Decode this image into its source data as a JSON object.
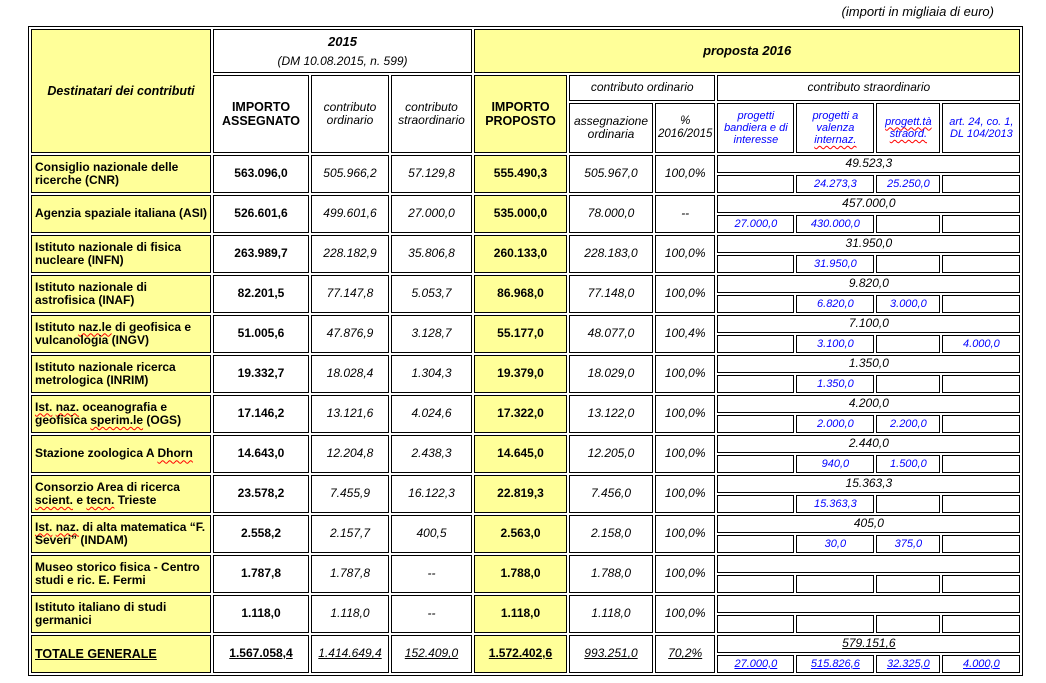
{
  "caption": "(importi in migliaia di euro)",
  "colors": {
    "highlight_yellow": "#FFFF99",
    "accent_blue": "#0000FF",
    "spellcheck_red": "#FF0000",
    "border": "#000000"
  },
  "header": {
    "destinatari": "Destinatari  dei contributi",
    "y2015": {
      "title": "2015",
      "subtitle": "(DM 10.08.2015,  n. 599)"
    },
    "proposta": "proposta 2016",
    "importo_assegnato": "IMPORTO ASSEGNATO",
    "contributo_ordinario_2015": "contributo ordinario",
    "contributo_straordinario_2015": "contributo straordinario",
    "importo_proposto": "IMPORTO PROPOSTO",
    "gruppo_ordinario": "contributo ordinario",
    "gruppo_straordinario": "contributo straordinario",
    "assegnazione_ordinaria": "assegnazione ordinaria",
    "pct_line1": "%",
    "pct_line2": "2016/2015",
    "str_cols": [
      [
        [
          "progetti bandiera e di interesse",
          0
        ]
      ],
      [
        [
          "progetti a valenza ",
          0
        ],
        [
          "internaz.",
          1
        ]
      ],
      [
        [
          "progett.tà",
          1
        ],
        [
          " ",
          0
        ],
        [
          "straord.",
          1
        ]
      ],
      [
        [
          "art. 24, co. 1, DL 104/2013",
          0
        ]
      ]
    ]
  },
  "rows": [
    {
      "name_segments": [
        [
          "Consiglio nazionale delle ricerche (CNR)",
          0
        ]
      ],
      "a15": "563.096,0",
      "o15": "505.966,2",
      "s15": "57.129,8",
      "prop": "555.490,3",
      "ass": "505.967,0",
      "pct": "100,0%",
      "stot": "49.523,3",
      "sc": [
        "",
        "24.273,3",
        "25.250,0",
        ""
      ]
    },
    {
      "name_segments": [
        [
          "Agenzia spaziale italiana (ASI)",
          0
        ]
      ],
      "a15": "526.601,6",
      "o15": "499.601,6",
      "s15": "27.000,0",
      "prop": "535.000,0",
      "ass": "78.000,0",
      "pct": "--",
      "stot": "457.000,0",
      "sc": [
        "27.000,0",
        "430.000,0",
        "",
        ""
      ]
    },
    {
      "name_segments": [
        [
          "Istituto nazionale di fisica nucleare (INFN)",
          0
        ]
      ],
      "a15": "263.989,7",
      "o15": "228.182,9",
      "s15": "35.806,8",
      "prop": "260.133,0",
      "ass": "228.183,0",
      "pct": "100,0%",
      "stot": "31.950,0",
      "sc": [
        "",
        "31.950,0",
        "",
        ""
      ]
    },
    {
      "name_segments": [
        [
          "Istituto nazionale di astrofisica (INAF)",
          0
        ]
      ],
      "a15": "82.201,5",
      "o15": "77.147,8",
      "s15": "5.053,7",
      "prop": "86.968,0",
      "ass": "77.148,0",
      "pct": "100,0%",
      "stot": "9.820,0",
      "sc": [
        "",
        "6.820,0",
        "3.000,0",
        ""
      ]
    },
    {
      "name_segments": [
        [
          "Istituto ",
          0
        ],
        [
          "naz.le",
          1
        ],
        [
          " di geofisica e vulcanologia (INGV)",
          0
        ]
      ],
      "a15": "51.005,6",
      "o15": "47.876,9",
      "s15": "3.128,7",
      "prop": "55.177,0",
      "ass": "48.077,0",
      "pct": "100,4%",
      "stot": "7.100,0",
      "sc": [
        "",
        "3.100,0",
        "",
        "4.000,0"
      ]
    },
    {
      "name_segments": [
        [
          "Istituto nazionale ricerca metrologica (INRIM)",
          0
        ]
      ],
      "a15": "19.332,7",
      "o15": "18.028,4",
      "s15": "1.304,3",
      "prop": "19.379,0",
      "ass": "18.029,0",
      "pct": "100,0%",
      "stot": "1.350,0",
      "sc": [
        "",
        "1.350,0",
        "",
        ""
      ]
    },
    {
      "name_segments": [
        [
          "Ist.",
          1
        ],
        [
          " ",
          0
        ],
        [
          "naz.",
          1
        ],
        [
          " oceanografia e geofisica ",
          0
        ],
        [
          "sperim.le",
          1
        ],
        [
          " (OGS)",
          0
        ]
      ],
      "a15": "17.146,2",
      "o15": "13.121,6",
      "s15": "4.024,6",
      "prop": "17.322,0",
      "ass": "13.122,0",
      "pct": "100,0%",
      "stot": "4.200,0",
      "sc": [
        "",
        "2.000,0",
        "2.200,0",
        ""
      ]
    },
    {
      "name_segments": [
        [
          "Stazione zoologica A ",
          0
        ],
        [
          "Dhorn",
          1
        ]
      ],
      "a15": "14.643,0",
      "o15": "12.204,8",
      "s15": "2.438,3",
      "prop": "14.645,0",
      "ass": "12.205,0",
      "pct": "100,0%",
      "stot": "2.440,0",
      "sc": [
        "",
        "940,0",
        "1.500,0",
        ""
      ]
    },
    {
      "name_segments": [
        [
          "Consorzio Area di ricerca ",
          0
        ],
        [
          "scient.",
          1
        ],
        [
          " e ",
          0
        ],
        [
          "tecn.",
          1
        ],
        [
          " Trieste",
          0
        ]
      ],
      "a15": "23.578,2",
      "o15": "7.455,9",
      "s15": "16.122,3",
      "prop": "22.819,3",
      "ass": "7.456,0",
      "pct": "100,0%",
      "stot": "15.363,3",
      "sc": [
        "",
        "15.363,3",
        "",
        ""
      ]
    },
    {
      "name_segments": [
        [
          "Ist.",
          1
        ],
        [
          " ",
          0
        ],
        [
          "naz.",
          1
        ],
        [
          " di alta matematica “F. Severi” (INDAM)",
          0
        ]
      ],
      "a15": "2.558,2",
      "o15": "2.157,7",
      "s15": "400,5",
      "prop": "2.563,0",
      "ass": "2.158,0",
      "pct": "100,0%",
      "stot": "405,0",
      "sc": [
        "",
        "30,0",
        "375,0",
        ""
      ]
    },
    {
      "name_segments": [
        [
          "Museo storico fisica - Centro studi e ric. E. Fermi",
          0
        ]
      ],
      "a15": "1.787,8",
      "o15": "1.787,8",
      "s15": "--",
      "prop": "1.788,0",
      "ass": "1.788,0",
      "pct": "100,0%",
      "stot": "",
      "sc": [
        "",
        "",
        "",
        ""
      ]
    },
    {
      "name_segments": [
        [
          "Istituto italiano di studi germanici",
          0
        ]
      ],
      "a15": "1.118,0",
      "o15": "1.118,0",
      "s15": "--",
      "prop": "1.118,0",
      "ass": "1.118,0",
      "pct": "100,0%",
      "stot": "",
      "sc": [
        "",
        "",
        "",
        ""
      ]
    }
  ],
  "totals": {
    "label": "TOTALE GENERALE",
    "a15": "1.567.058,4",
    "o15": "1.414.649,4",
    "s15": "152.409,0",
    "prop": "1.572.402,6",
    "ass": "993.251,0",
    "pct": "70,2%",
    "stot": "579.151,6",
    "sc": [
      "27.000,0",
      "515.826,6",
      "32.325,0",
      "4.000,0"
    ]
  }
}
